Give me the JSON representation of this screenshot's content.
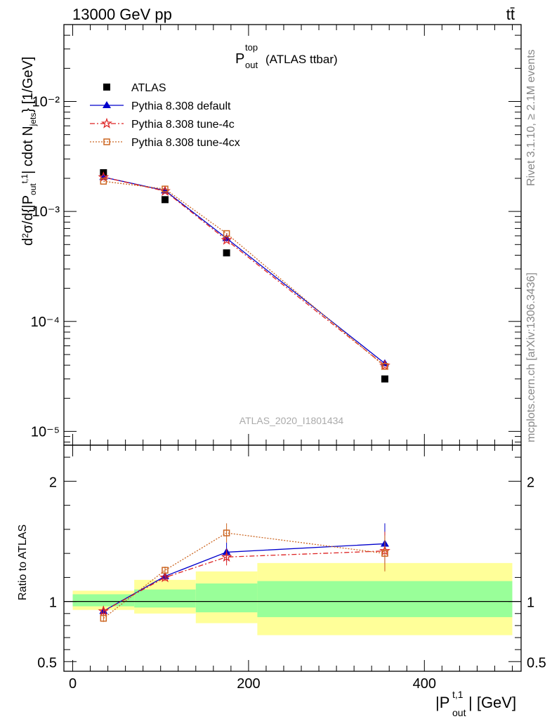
{
  "header": {
    "left_label": "13000 GeV pp",
    "right_label": "tt̄"
  },
  "side_labels": {
    "rivet": "Rivet 3.1.10, ≥ 2.1M events",
    "mcplots": "mcplots.cern.ch [arXiv:1306.3436]"
  },
  "chart_data": [
    {
      "type": "scatter",
      "title_main": "P",
      "title_sup": "top",
      "title_sub": "out",
      "title_suffix": "(ATLAS ttbar)",
      "watermark": "ATLAS_2020_I1801434",
      "ylabel": "d²σ/d{|P_out^t,1| cdot N_jets} [1/GeV]",
      "yscale": "log",
      "ylim": [
        7.5e-06,
        0.05
      ],
      "xlim": [
        -10,
        510
      ],
      "ytick_labels": [
        "10⁻⁵",
        "10⁻⁴",
        "10⁻³",
        "10⁻²"
      ],
      "legend_position": "top-left",
      "series": [
        {
          "name": "ATLAS",
          "color": "#000000",
          "marker": "square",
          "x": [
            35,
            105,
            175,
            355
          ],
          "y": [
            0.00225,
            0.00128,
            0.00042,
            3e-05
          ]
        },
        {
          "name": "Pythia 8.308 default",
          "color": "#0000cc",
          "marker": "triangle",
          "line": "solid",
          "x": [
            35,
            105,
            175,
            355
          ],
          "y": [
            0.00205,
            0.00155,
            0.00057,
            4.15e-05
          ]
        },
        {
          "name": "Pythia 8.308 tune-4c",
          "color": "#dd2222",
          "marker": "star",
          "line": "dashdot",
          "x": [
            35,
            105,
            175,
            355
          ],
          "y": [
            0.00205,
            0.00153,
            0.00055,
            3.98e-05
          ]
        },
        {
          "name": "Pythia 8.308 tune-4cx",
          "color": "#cc6622",
          "marker": "open-square",
          "line": "dotted",
          "x": [
            35,
            105,
            175,
            355
          ],
          "y": [
            0.00188,
            0.0016,
            0.00063,
            3.9e-05
          ]
        }
      ]
    },
    {
      "type": "scatter",
      "ylabel": "Ratio to ATLAS",
      "xlabel": "|P_out^t,1| [GeV]",
      "ylim": [
        0.42,
        2.3
      ],
      "xlim": [
        -10,
        510
      ],
      "y_ticks": [
        0.5,
        1,
        2
      ],
      "ytick_labels": [
        "0.5",
        "1",
        "2"
      ],
      "x_ticks": [
        0,
        200,
        400
      ],
      "xtick_labels": [
        "0",
        "200",
        "400"
      ],
      "bands": [
        {
          "x0": 0,
          "x1": 70,
          "yellow": [
            0.93,
            1.09
          ],
          "green": [
            0.96,
            1.06
          ]
        },
        {
          "x0": 70,
          "x1": 140,
          "yellow": [
            0.9,
            1.18
          ],
          "green": [
            0.95,
            1.1
          ]
        },
        {
          "x0": 140,
          "x1": 210,
          "yellow": [
            0.82,
            1.25
          ],
          "green": [
            0.91,
            1.15
          ]
        },
        {
          "x0": 210,
          "x1": 500,
          "yellow": [
            0.72,
            1.32
          ],
          "green": [
            0.87,
            1.17
          ]
        }
      ],
      "series": [
        {
          "name": "Pythia 8.308 default",
          "color": "#0000cc",
          "marker": "triangle",
          "line": "solid",
          "x": [
            35,
            105,
            175,
            355
          ],
          "y": [
            0.92,
            1.21,
            1.41,
            1.48
          ],
          "err": [
            0.04,
            0.03,
            0.08,
            0.17
          ]
        },
        {
          "name": "Pythia 8.308 tune-4c",
          "color": "#dd2222",
          "marker": "star",
          "line": "dashdot",
          "x": [
            35,
            105,
            175,
            355
          ],
          "y": [
            0.92,
            1.2,
            1.37,
            1.42
          ],
          "err": [
            0.04,
            0.03,
            0.07,
            0.16
          ]
        },
        {
          "name": "Pythia 8.308 tune-4cx",
          "color": "#cc6622",
          "marker": "open-square",
          "line": "dotted",
          "x": [
            35,
            105,
            175,
            355
          ],
          "y": [
            0.86,
            1.26,
            1.57,
            1.4
          ],
          "err": [
            0.03,
            0.03,
            0.08,
            0.15
          ]
        }
      ]
    }
  ]
}
